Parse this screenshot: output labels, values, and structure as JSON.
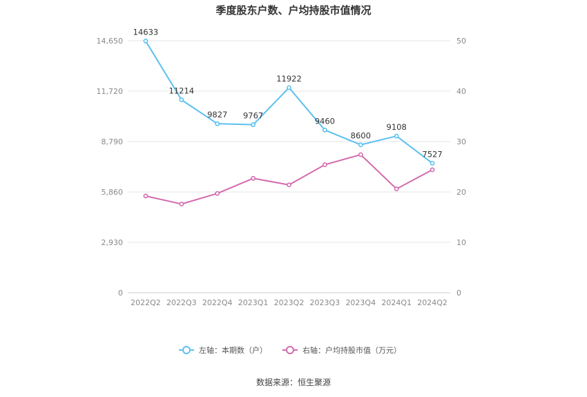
{
  "chart_data": {
    "type": "line",
    "title": "季度股东户数、户均持股市值情况",
    "categories": [
      "2022Q2",
      "2022Q3",
      "2022Q4",
      "2023Q1",
      "2023Q2",
      "2023Q3",
      "2023Q4",
      "2024Q1",
      "2024Q2"
    ],
    "left_axis": {
      "ticks": [
        "0",
        "2,930",
        "5,860",
        "8,790",
        "11,720",
        "14,650"
      ],
      "ylim": [
        0,
        14650
      ]
    },
    "right_axis": {
      "ticks": [
        "0",
        "10",
        "20",
        "30",
        "40",
        "50"
      ],
      "ylim": [
        0,
        50
      ]
    },
    "series": [
      {
        "name": "左轴：本期数（户）",
        "axis": "left",
        "color": "#5bc0f0",
        "values": [
          14633,
          11214,
          9827,
          9767,
          11922,
          9460,
          8600,
          9108,
          7527
        ],
        "labels": [
          "14633",
          "11214",
          "9827",
          "9767",
          "11922",
          "9460",
          "8600",
          "9108",
          "7527"
        ]
      },
      {
        "name": "右轴：户均持股市值（万元）",
        "axis": "right",
        "color": "#d36aae",
        "values": [
          19.2,
          17.6,
          19.7,
          22.7,
          21.4,
          25.4,
          27.4,
          20.6,
          24.4
        ]
      }
    ],
    "grid": true,
    "legend_position": "bottom"
  },
  "source": "数据来源：恒生聚源"
}
